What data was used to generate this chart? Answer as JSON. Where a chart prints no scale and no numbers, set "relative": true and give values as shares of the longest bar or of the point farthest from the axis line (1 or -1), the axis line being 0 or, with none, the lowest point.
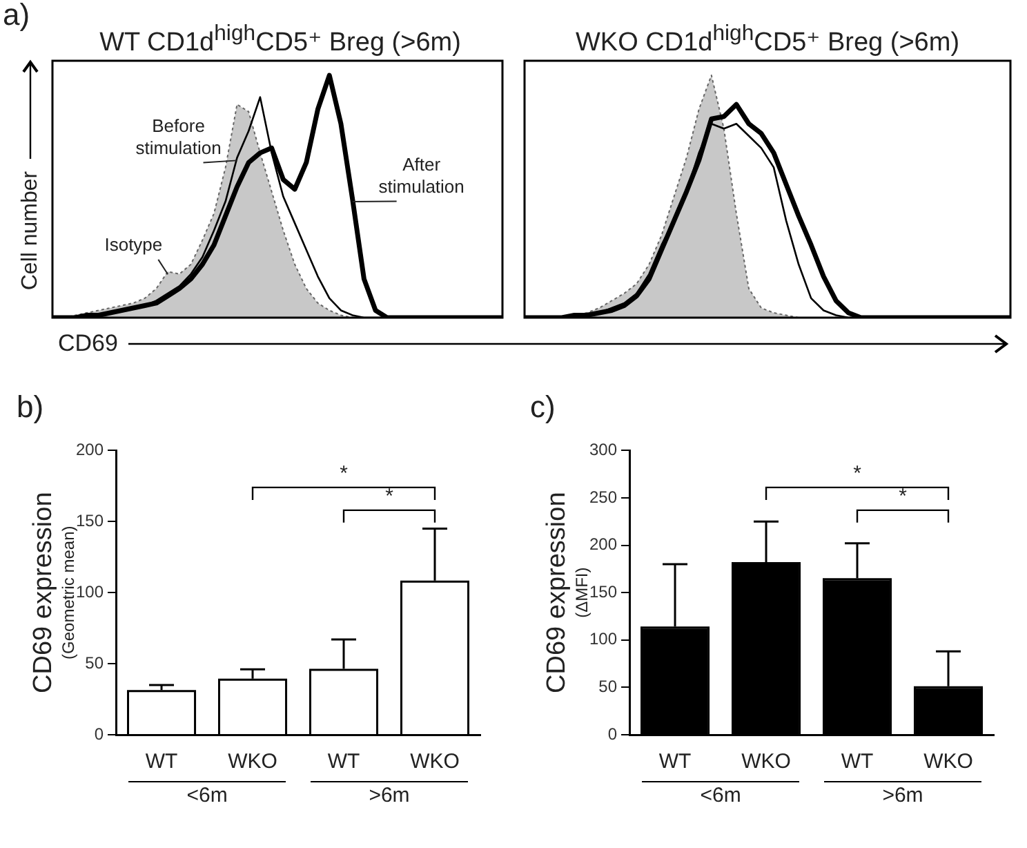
{
  "chart_data": [
    {
      "type": "line",
      "relative": true,
      "title": "WT CD1d$^{high}$CD5⁺ Breg  (>6m)",
      "xlabel": "CD69",
      "ylabel": "Cell number",
      "annotations": [
        "a)",
        "Isotype",
        "Before stimulation",
        "After stimulation"
      ],
      "marker": "none",
      "tick_labels": false,
      "categories": [
        null,
        null,
        null,
        null,
        null,
        null,
        null,
        null,
        null,
        null,
        null,
        null,
        null,
        null,
        null,
        null,
        null,
        null,
        null,
        null,
        null,
        null,
        null,
        null,
        null,
        null,
        null,
        null,
        null,
        null,
        null,
        null,
        null,
        null,
        null,
        null,
        null,
        null,
        null,
        null
      ],
      "series": [
        {
          "type": "area",
          "color": "#c8c8c8",
          "line_style": "dotted",
          "values": [
            0,
            0,
            0.01,
            0.02,
            0.03,
            0.04,
            0.05,
            0.06,
            0.08,
            0.12,
            0.19,
            0.18,
            0.22,
            0.32,
            0.43,
            0.62,
            0.88,
            0.85,
            0.68,
            0.52,
            0.36,
            0.22,
            0.12,
            0.06,
            0.03,
            0.01,
            0,
            0,
            0,
            0,
            0,
            0,
            0,
            0,
            0,
            0,
            0,
            0,
            0,
            0
          ]
        },
        {
          "type": "line",
          "color": "#000000",
          "line_style": "solid",
          "values": [
            0,
            0,
            0,
            0.01,
            0.01,
            0.02,
            0.03,
            0.04,
            0.05,
            0.07,
            0.1,
            0.13,
            0.18,
            0.25,
            0.36,
            0.48,
            0.66,
            0.77,
            0.91,
            0.68,
            0.5,
            0.39,
            0.28,
            0.17,
            0.08,
            0.03,
            0.01,
            0,
            0,
            0,
            0,
            0,
            0,
            0,
            0,
            0,
            0,
            0,
            0,
            0
          ]
        },
        {
          "type": "line",
          "color": "#000000",
          "line_style": "solid",
          "values": [
            0,
            0,
            0,
            0.01,
            0.01,
            0.02,
            0.03,
            0.04,
            0.05,
            0.06,
            0.09,
            0.12,
            0.16,
            0.22,
            0.3,
            0.42,
            0.54,
            0.64,
            0.68,
            0.7,
            0.57,
            0.53,
            0.64,
            0.86,
            1,
            0.8,
            0.49,
            0.16,
            0.03,
            0,
            0,
            0,
            0,
            0,
            0,
            0,
            0,
            0,
            0,
            0
          ]
        }
      ]
    },
    {
      "type": "line",
      "relative": true,
      "title": "WKO CD1d$^{high}$CD5⁺ Breg  (>6m)",
      "marker": "none",
      "tick_labels": false,
      "categories": [
        null,
        null,
        null,
        null,
        null,
        null,
        null,
        null,
        null,
        null,
        null,
        null,
        null,
        null,
        null,
        null,
        null,
        null,
        null,
        null,
        null,
        null,
        null,
        null,
        null,
        null,
        null,
        null,
        null,
        null,
        null,
        null,
        null,
        null,
        null,
        null,
        null,
        null,
        null,
        null
      ],
      "series": [
        {
          "type": "area",
          "color": "#c8c8c8",
          "line_style": "dotted",
          "values": [
            0,
            0,
            0,
            0,
            0.01,
            0.02,
            0.04,
            0.07,
            0.1,
            0.14,
            0.22,
            0.34,
            0.5,
            0.66,
            0.86,
            1,
            0.78,
            0.43,
            0.12,
            0.04,
            0.02,
            0.01,
            0,
            0,
            0,
            0,
            0,
            0,
            0,
            0,
            0,
            0,
            0,
            0,
            0,
            0,
            0,
            0,
            0,
            0
          ]
        },
        {
          "type": "line",
          "color": "#000000",
          "line_style": "solid",
          "values": [
            0,
            0,
            0,
            0,
            0.01,
            0.01,
            0.02,
            0.04,
            0.06,
            0.1,
            0.18,
            0.3,
            0.4,
            0.52,
            0.68,
            0.8,
            0.78,
            0.8,
            0.75,
            0.7,
            0.62,
            0.4,
            0.22,
            0.08,
            0.03,
            0.01,
            0,
            0,
            0,
            0,
            0,
            0,
            0,
            0,
            0,
            0,
            0,
            0,
            0,
            0
          ]
        },
        {
          "type": "line",
          "color": "#000000",
          "line_style": "solid",
          "values": [
            0,
            0,
            0,
            0,
            0.01,
            0.01,
            0.02,
            0.03,
            0.05,
            0.09,
            0.16,
            0.28,
            0.4,
            0.52,
            0.65,
            0.82,
            0.83,
            0.88,
            0.8,
            0.76,
            0.68,
            0.55,
            0.42,
            0.3,
            0.17,
            0.07,
            0.02,
            0,
            0,
            0,
            0,
            0,
            0,
            0,
            0,
            0,
            0,
            0,
            0,
            0
          ]
        }
      ]
    },
    {
      "type": "bar",
      "title": "b)",
      "ylabel": "CD69 expression\n(Geometric mean)",
      "categories": [
        "WT",
        "WKO",
        "WT",
        "WKO"
      ],
      "color": "#ffffff",
      "values": [
        30,
        38,
        45,
        107
      ],
      "errors": [
        [
          30,
          35
        ],
        [
          38,
          46
        ],
        [
          45,
          67
        ],
        [
          107,
          145
        ]
      ],
      "ylim": [
        0,
        200
      ],
      "yticks": [
        0,
        50,
        100,
        150,
        200
      ],
      "annotations": [
        "*",
        "*",
        "<6m",
        ">6m"
      ]
    },
    {
      "type": "bar",
      "title": "c)",
      "ylabel": "CD69 expression\n(ΔMFI)",
      "categories": [
        "WT",
        "WKO",
        "WT",
        "WKO"
      ],
      "color": "#000000",
      "values": [
        112,
        180,
        163,
        49
      ],
      "errors": [
        [
          112,
          180
        ],
        [
          180,
          225
        ],
        [
          163,
          202
        ],
        [
          49,
          88
        ]
      ],
      "ylim": [
        0,
        300
      ],
      "yticks": [
        0,
        50,
        100,
        150,
        200,
        250,
        300
      ],
      "annotations": [
        "*",
        "*",
        "<6m",
        ">6m"
      ]
    }
  ]
}
